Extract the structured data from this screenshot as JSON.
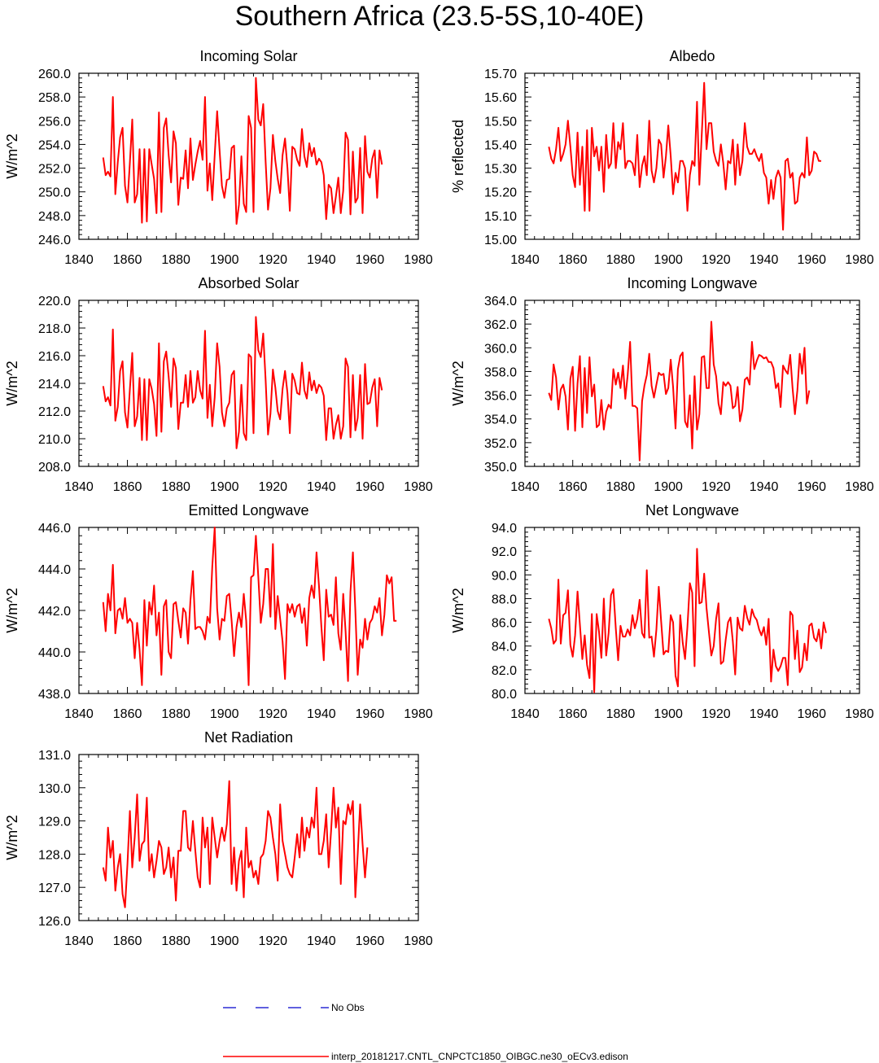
{
  "page": {
    "title": "Southern Africa (23.5-5S,10-40E)"
  },
  "legend": {
    "obs_label": "No Obs",
    "model_label": "interp_20181217.CNTL_CNPCTC1850_OIBGC.ne30_oECv3.edison",
    "obs_color": "#0000cc",
    "model_color": "#ff0000"
  },
  "chart_data": [
    {
      "type": "line",
      "title": "Incoming Solar",
      "ylabel": "W/m^2",
      "xlim": [
        1840,
        1980
      ],
      "ylim": [
        246.0,
        260.0
      ],
      "xticks": [
        1840,
        1860,
        1880,
        1900,
        1920,
        1940,
        1960,
        1980
      ],
      "yticks": [
        "246.0",
        "248.0",
        "250.0",
        "252.0",
        "254.0",
        "256.0",
        "258.0",
        "260.0"
      ],
      "x_start": 1850,
      "series": [
        {
          "color": "#ff0000",
          "values": [
            252.9,
            251.4,
            251.7,
            251.3,
            258.0,
            249.8,
            252.5,
            254.6,
            255.4,
            250.5,
            249.1,
            252.5,
            256.1,
            249.1,
            249.8,
            253.6,
            247.4,
            253.6,
            247.5,
            253.6,
            252.3,
            251.1,
            248.2,
            256.7,
            248.3,
            255.4,
            256.2,
            253.1,
            250.8,
            255.1,
            254.1,
            248.9,
            251.2,
            251.1,
            253.5,
            250.3,
            254.5,
            251.0,
            252.3,
            253.4,
            254.3,
            252.7,
            258.0,
            250.1,
            252.4,
            249.3,
            253.1,
            256.8,
            253.5,
            250.5,
            249.5,
            251.0,
            251.1,
            253.7,
            253.9,
            247.3,
            248.9,
            253.0,
            249.0,
            248.3,
            256.4,
            255.4,
            248.3,
            259.6,
            256.1,
            255.6,
            257.4,
            252.5,
            248.5,
            250.3,
            254.8,
            252.6,
            251.1,
            249.9,
            253.1,
            254.5,
            252.0,
            248.4,
            253.8,
            253.6,
            252.7,
            252.2,
            255.3,
            253.0,
            252.1,
            254.1,
            253.0,
            253.7,
            252.3,
            252.8,
            252.5,
            251.4,
            247.7,
            250.6,
            250.3,
            248.2,
            249.6,
            251.2,
            248.2,
            250.1,
            255.0,
            254.4,
            248.1,
            253.4,
            249.1,
            249.5,
            253.7,
            248.2,
            254.7,
            251.7,
            251.2,
            252.8,
            253.5,
            249.5,
            253.5,
            252.3
          ]
        }
      ]
    },
    {
      "type": "line",
      "title": "Albedo",
      "ylabel": "% reflected",
      "xlim": [
        1840,
        1980
      ],
      "ylim": [
        15.0,
        15.7
      ],
      "xticks": [
        1840,
        1860,
        1880,
        1900,
        1920,
        1940,
        1960,
        1980
      ],
      "yticks": [
        "15.00",
        "15.10",
        "15.20",
        "15.30",
        "15.40",
        "15.50",
        "15.60",
        "15.70"
      ],
      "x_start": 1850,
      "series": [
        {
          "color": "#ff0000",
          "values": [
            15.39,
            15.34,
            15.32,
            15.38,
            15.47,
            15.33,
            15.36,
            15.4,
            15.5,
            15.39,
            15.27,
            15.22,
            15.45,
            15.23,
            15.39,
            15.12,
            15.46,
            15.12,
            15.47,
            15.35,
            15.39,
            15.29,
            15.39,
            15.2,
            15.44,
            15.3,
            15.32,
            15.49,
            15.3,
            15.41,
            15.38,
            15.49,
            15.3,
            15.33,
            15.33,
            15.32,
            15.27,
            15.44,
            15.22,
            15.31,
            15.35,
            15.27,
            15.5,
            15.29,
            15.24,
            15.3,
            15.42,
            15.4,
            15.26,
            15.35,
            15.48,
            15.35,
            15.19,
            15.28,
            15.24,
            15.33,
            15.33,
            15.3,
            15.12,
            15.27,
            15.33,
            15.31,
            15.58,
            15.23,
            15.44,
            15.66,
            15.38,
            15.49,
            15.49,
            15.37,
            15.33,
            15.31,
            15.4,
            15.32,
            15.21,
            15.33,
            15.32,
            15.42,
            15.23,
            15.4,
            15.27,
            15.33,
            15.49,
            15.39,
            15.36,
            15.36,
            15.38,
            15.35,
            15.33,
            15.36,
            15.28,
            15.26,
            15.15,
            15.25,
            15.17,
            15.26,
            15.29,
            15.26,
            15.04,
            15.33,
            15.34,
            15.26,
            15.28,
            15.15,
            15.16,
            15.26,
            15.28,
            15.26,
            15.43,
            15.27,
            15.29,
            15.37,
            15.36,
            15.33,
            15.33
          ]
        }
      ]
    },
    {
      "type": "line",
      "title": "Absorbed Solar",
      "ylabel": "W/m^2",
      "xlim": [
        1840,
        1980
      ],
      "ylim": [
        208.0,
        220.0
      ],
      "xticks": [
        1840,
        1860,
        1880,
        1900,
        1920,
        1940,
        1960,
        1980
      ],
      "yticks": [
        "208.0",
        "210.0",
        "212.0",
        "214.0",
        "216.0",
        "218.0",
        "220.0"
      ],
      "x_start": 1850,
      "series": [
        {
          "color": "#ff0000",
          "values": [
            213.8,
            212.7,
            213.0,
            212.4,
            217.9,
            211.3,
            212.3,
            214.9,
            215.6,
            211.9,
            210.8,
            213.6,
            216.2,
            210.9,
            211.6,
            214.4,
            209.9,
            214.3,
            209.9,
            214.3,
            213.6,
            212.5,
            210.2,
            216.9,
            210.5,
            215.6,
            216.3,
            214.5,
            212.3,
            215.8,
            215.1,
            210.7,
            212.6,
            212.6,
            214.6,
            212.3,
            214.9,
            212.6,
            213.0,
            214.9,
            213.5,
            212.9,
            217.8,
            211.5,
            213.9,
            210.9,
            213.0,
            216.9,
            215.2,
            211.9,
            210.9,
            212.2,
            212.6,
            214.6,
            214.9,
            209.3,
            210.5,
            213.9,
            210.4,
            209.9,
            216.1,
            215.9,
            210.4,
            218.8,
            216.4,
            215.9,
            217.6,
            214.2,
            210.3,
            211.8,
            215.0,
            213.7,
            212.0,
            211.4,
            213.6,
            214.9,
            213.3,
            210.4,
            214.7,
            214.2,
            213.3,
            213.2,
            215.5,
            213.5,
            212.9,
            214.8,
            213.5,
            214.2,
            213.3,
            213.9,
            213.7,
            213.1,
            209.9,
            212.2,
            212.2,
            210.0,
            211.0,
            211.7,
            210.0,
            210.9,
            215.8,
            215.2,
            210.1,
            214.6,
            210.6,
            211.5,
            214.6,
            210.0,
            215.4,
            212.5,
            212.6,
            213.7,
            214.3,
            210.9,
            214.4,
            213.5
          ]
        }
      ]
    },
    {
      "type": "line",
      "title": "Incoming Longwave",
      "ylabel": "W/m^2",
      "xlim": [
        1840,
        1980
      ],
      "ylim": [
        350.0,
        364.0
      ],
      "xticks": [
        1840,
        1860,
        1880,
        1900,
        1920,
        1940,
        1960,
        1980
      ],
      "yticks": [
        "350.0",
        "352.0",
        "354.0",
        "356.0",
        "358.0",
        "360.0",
        "362.0",
        "364.0"
      ],
      "x_start": 1850,
      "series": [
        {
          "color": "#ff0000",
          "values": [
            356.2,
            355.6,
            358.6,
            357.5,
            354.8,
            356.5,
            356.9,
            355.9,
            353.1,
            357.4,
            358.4,
            353.0,
            357.0,
            359.3,
            353.3,
            358.3,
            354.5,
            359.2,
            355.9,
            356.9,
            353.3,
            353.5,
            355.6,
            353.1,
            354.6,
            355.2,
            354.9,
            358.2,
            356.9,
            357.9,
            356.6,
            358.5,
            355.7,
            357.7,
            360.5,
            355.1,
            355.1,
            354.9,
            350.5,
            355.5,
            356.8,
            357.7,
            359.5,
            356.8,
            355.8,
            356.9,
            357.9,
            357.7,
            357.8,
            356.1,
            356.6,
            359.0,
            356.7,
            353.2,
            358.2,
            359.3,
            359.6,
            353.8,
            353.3,
            356.0,
            351.5,
            357.6,
            353.1,
            354.4,
            359.2,
            359.3,
            356.6,
            356.6,
            362.2,
            358.6,
            357.6,
            355.3,
            354.4,
            357.1,
            356.8,
            357.1,
            356.8,
            354.9,
            355.1,
            356.7,
            353.8,
            354.8,
            357.3,
            357.5,
            356.9,
            360.5,
            358.2,
            358.9,
            359.4,
            359.3,
            359.1,
            359.2,
            358.8,
            358.8,
            358.3,
            356.6,
            357.0,
            355.0,
            358.5,
            358.1,
            357.8,
            359.4,
            356.6,
            354.4,
            356.4,
            359.5,
            357.8,
            360.0,
            355.3,
            356.4
          ]
        }
      ]
    },
    {
      "type": "line",
      "title": "Emitted Longwave",
      "ylabel": "W/m^2",
      "xlim": [
        1840,
        1980
      ],
      "ylim": [
        438.0,
        446.0
      ],
      "xticks": [
        1840,
        1860,
        1880,
        1900,
        1920,
        1940,
        1960,
        1980
      ],
      "yticks": [
        "438.0",
        "440.0",
        "442.0",
        "444.0",
        "446.0"
      ],
      "x_start": 1850,
      "series": [
        {
          "color": "#ff0000",
          "values": [
            442.4,
            441.0,
            442.8,
            442.0,
            444.2,
            440.9,
            442.0,
            442.1,
            441.6,
            442.6,
            441.4,
            441.6,
            441.4,
            439.7,
            441.4,
            440.1,
            438.4,
            442.5,
            440.3,
            442.4,
            441.8,
            443.2,
            440.8,
            441.9,
            438.9,
            442.2,
            442.5,
            440.0,
            439.7,
            442.3,
            442.4,
            441.5,
            440.7,
            442.1,
            441.9,
            440.4,
            442.5,
            443.9,
            441.1,
            441.2,
            441.2,
            441.0,
            440.6,
            441.7,
            441.4,
            444.1,
            446.0,
            442.1,
            440.6,
            441.6,
            441.5,
            442.7,
            442.8,
            441.5,
            439.8,
            441.2,
            441.9,
            441.2,
            442.8,
            441.5,
            438.4,
            443.6,
            443.7,
            445.6,
            443.6,
            441.4,
            442.3,
            444.0,
            444.0,
            441.7,
            445.2,
            441.1,
            442.7,
            441.6,
            440.5,
            438.7,
            442.3,
            441.9,
            442.3,
            441.7,
            442.2,
            442.3,
            441.4,
            442.1,
            440.3,
            442.6,
            443.2,
            442.6,
            444.8,
            443.2,
            441.2,
            439.6,
            443.0,
            441.7,
            441.8,
            441.3,
            443.6,
            440.9,
            440.1,
            442.8,
            441.0,
            438.6,
            442.9,
            444.8,
            442.0,
            438.9,
            440.6,
            440.2,
            441.6,
            440.6,
            441.4,
            441.6,
            442.2,
            441.9,
            442.6,
            440.8,
            441.8,
            443.7,
            443.3,
            443.6,
            441.5,
            441.5
          ]
        }
      ]
    },
    {
      "type": "line",
      "title": "Net Longwave",
      "ylabel": "W/m^2",
      "xlim": [
        1840,
        1980
      ],
      "ylim": [
        80.0,
        94.0
      ],
      "xticks": [
        1840,
        1860,
        1880,
        1900,
        1920,
        1940,
        1960,
        1980
      ],
      "yticks": [
        "80.0",
        "82.0",
        "84.0",
        "86.0",
        "88.0",
        "90.0",
        "92.0",
        "94.0"
      ],
      "x_start": 1850,
      "series": [
        {
          "color": "#ff0000",
          "values": [
            86.3,
            85.5,
            84.2,
            84.5,
            89.6,
            84.2,
            86.6,
            86.8,
            88.7,
            84.1,
            83.1,
            84.9,
            88.6,
            85.8,
            82.9,
            84.9,
            82.4,
            81.3,
            86.7,
            80.1,
            86.7,
            85.2,
            83.0,
            88.0,
            83.2,
            85.1,
            88.3,
            88.8,
            85.5,
            82.8,
            85.7,
            84.8,
            84.8,
            85.4,
            84.9,
            86.6,
            85.5,
            86.3,
            87.9,
            85.1,
            84.7,
            90.4,
            84.7,
            84.8,
            83.1,
            85.4,
            89.0,
            86.1,
            83.3,
            83.6,
            83.5,
            86.6,
            86.0,
            81.5,
            80.6,
            86.6,
            84.3,
            82.9,
            85.6,
            89.3,
            88.5,
            82.3,
            92.2,
            87.6,
            87.7,
            90.1,
            87.2,
            85.2,
            83.2,
            84.0,
            86.3,
            87.6,
            82.5,
            82.7,
            84.5,
            86.0,
            86.4,
            84.4,
            81.6,
            86.4,
            85.5,
            85.3,
            87.4,
            86.4,
            85.8,
            87.1,
            86.5,
            86.2,
            85.4,
            84.9,
            85.6,
            84.1,
            86.3,
            81.0,
            83.7,
            82.3,
            81.9,
            82.3,
            83.0,
            83.0,
            80.7,
            86.9,
            86.6,
            82.9,
            85.3,
            81.8,
            82.2,
            84.2,
            82.8,
            85.7,
            85.9,
            84.7,
            84.4,
            85.4,
            83.8,
            86.0,
            85.1
          ]
        }
      ]
    },
    {
      "type": "line",
      "title": "Net Radiation",
      "ylabel": "W/m^2",
      "xlim": [
        1840,
        1980
      ],
      "ylim": [
        126.0,
        131.0
      ],
      "xticks": [
        1840,
        1860,
        1880,
        1900,
        1920,
        1940,
        1960,
        1980
      ],
      "yticks": [
        "126.0",
        "127.0",
        "128.0",
        "129.0",
        "130.0",
        "131.0"
      ],
      "x_start": 1850,
      "series": [
        {
          "color": "#ff0000",
          "values": [
            127.6,
            127.2,
            128.8,
            127.9,
            128.4,
            126.9,
            127.6,
            128.0,
            126.8,
            126.4,
            127.7,
            129.3,
            127.6,
            128.5,
            129.8,
            127.8,
            128.3,
            128.4,
            129.7,
            127.5,
            128.0,
            127.3,
            127.8,
            128.4,
            128.2,
            127.4,
            127.6,
            128.2,
            127.3,
            127.9,
            126.6,
            128.1,
            128.1,
            129.3,
            129.3,
            128.2,
            128.1,
            129.0,
            128.1,
            127.3,
            127.0,
            129.1,
            128.2,
            128.8,
            127.1,
            129.1,
            128.5,
            127.9,
            128.4,
            128.8,
            128.4,
            128.9,
            130.2,
            127.1,
            128.2,
            126.9,
            127.8,
            128.1,
            126.7,
            128.8,
            127.6,
            127.8,
            127.3,
            127.5,
            127.1,
            127.9,
            128.0,
            128.4,
            129.3,
            129.1,
            128.5,
            128.0,
            127.2,
            129.5,
            128.4,
            128.0,
            127.6,
            127.4,
            127.3,
            127.9,
            128.6,
            127.9,
            129.1,
            128.1,
            128.8,
            128.5,
            129.1,
            128.8,
            130.0,
            128.0,
            128.0,
            128.4,
            129.2,
            127.6,
            128.7,
            130.0,
            128.8,
            129.4,
            127.1,
            129.0,
            128.9,
            129.5,
            129.2,
            129.6,
            126.7,
            128.0,
            129.5,
            128.3,
            127.3,
            128.2
          ]
        }
      ]
    }
  ]
}
